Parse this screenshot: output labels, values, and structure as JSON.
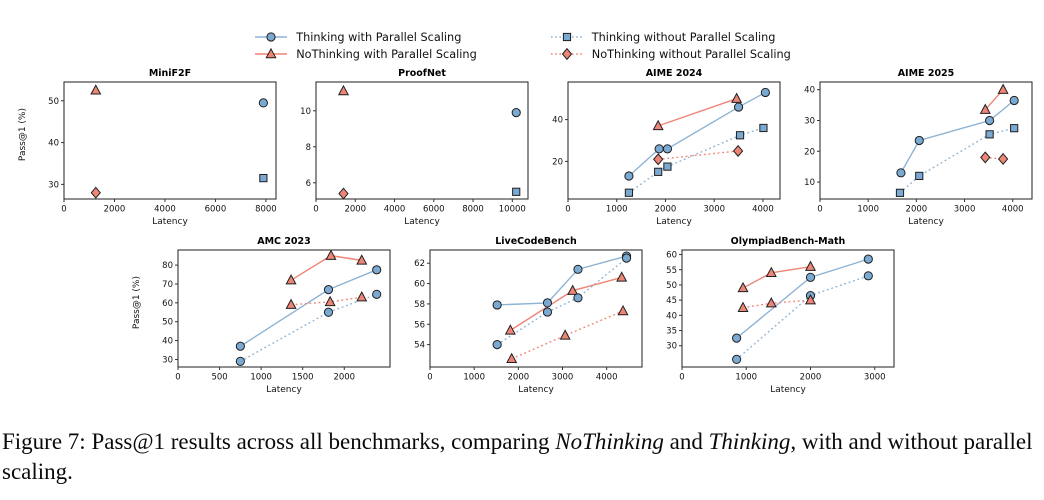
{
  "colors": {
    "blue_line": "#8db3d5",
    "blue_fill": "#7aa9d2",
    "red_line": "#f08476",
    "red_fill": "#ee8677",
    "marker_edge": "#1f1f1f",
    "axis": "#333333"
  },
  "legend": {
    "items": [
      {
        "label": "Thinking with Parallel Scaling",
        "marker": "circle",
        "line": "solid",
        "color": "blue"
      },
      {
        "label": "NoThinking with Parallel Scaling",
        "marker": "triangle",
        "line": "solid",
        "color": "red"
      },
      {
        "label": "Thinking without Parallel Scaling",
        "marker": "square",
        "line": "dotted",
        "color": "blue"
      },
      {
        "label": "NoThinking without Parallel Scaling",
        "marker": "diamond",
        "line": "dotted",
        "color": "red"
      }
    ]
  },
  "axis": {
    "ylabel": "Pass@1 (%)",
    "xlabel": "Latency"
  },
  "caption": {
    "prefix": "Figure 7: Pass@1 results across all benchmarks, comparing ",
    "italic1": "NoThinking",
    "mid": " and ",
    "italic2": "Thinking",
    "suffix": ", with and without parallel scaling."
  },
  "chart_data": [
    {
      "type": "scatter",
      "title": "MiniF2F",
      "xlabel": "Latency",
      "ylabel": "Pass@1 (%)",
      "xlim": [
        0,
        8400
      ],
      "ylim": [
        26.5,
        54.5
      ],
      "xticks": [
        0,
        2000,
        4000,
        6000,
        8000
      ],
      "yticks": [
        30,
        40,
        50
      ],
      "series": [
        {
          "name": "Thinking with Parallel Scaling",
          "color": "blue",
          "marker": "circle",
          "line": "solid",
          "points": [
            [
              7900,
              49.5
            ]
          ]
        },
        {
          "name": "NoThinking with Parallel Scaling",
          "color": "red",
          "marker": "triangle",
          "line": "solid",
          "points": [
            [
              1260,
              52.5
            ]
          ]
        },
        {
          "name": "Thinking without Parallel Scaling",
          "color": "blue",
          "marker": "square",
          "line": "dotted",
          "points": [
            [
              7900,
              31.5
            ]
          ]
        },
        {
          "name": "NoThinking without Parallel Scaling",
          "color": "red",
          "marker": "diamond",
          "line": "dotted",
          "points": [
            [
              1260,
              28
            ]
          ]
        }
      ]
    },
    {
      "type": "scatter",
      "title": "ProofNet",
      "xlabel": "Latency",
      "xlim": [
        0,
        10800
      ],
      "ylim": [
        5.1,
        11.6
      ],
      "xticks": [
        0,
        2000,
        4000,
        6000,
        8000,
        10000
      ],
      "yticks": [
        6,
        8,
        10
      ],
      "series": [
        {
          "name": "Thinking with Parallel Scaling",
          "color": "blue",
          "marker": "circle",
          "line": "solid",
          "points": [
            [
              10200,
              9.9
            ]
          ]
        },
        {
          "name": "NoThinking with Parallel Scaling",
          "color": "red",
          "marker": "triangle",
          "line": "solid",
          "points": [
            [
              1400,
              11.1
            ]
          ]
        },
        {
          "name": "Thinking without Parallel Scaling",
          "color": "blue",
          "marker": "square",
          "line": "dotted",
          "points": [
            [
              10200,
              5.5
            ]
          ]
        },
        {
          "name": "NoThinking without Parallel Scaling",
          "color": "red",
          "marker": "diamond",
          "line": "dotted",
          "points": [
            [
              1400,
              5.4
            ]
          ]
        }
      ]
    },
    {
      "type": "line",
      "title": "AIME 2024",
      "xlabel": "Latency",
      "xlim": [
        0,
        4350
      ],
      "ylim": [
        2,
        58
      ],
      "xticks": [
        0,
        1000,
        2000,
        3000,
        4000
      ],
      "yticks": [
        20,
        40
      ],
      "series": [
        {
          "name": "Thinking with Parallel Scaling",
          "color": "blue",
          "marker": "circle",
          "line": "solid",
          "points": [
            [
              1250,
              13
            ],
            [
              1870,
              26
            ],
            [
              2040,
              26
            ],
            [
              3500,
              46
            ],
            [
              4050,
              53
            ]
          ]
        },
        {
          "name": "NoThinking with Parallel Scaling",
          "color": "red",
          "marker": "triangle",
          "line": "solid",
          "points": [
            [
              1850,
              37
            ],
            [
              3460,
              50
            ]
          ]
        },
        {
          "name": "Thinking without Parallel Scaling",
          "color": "blue",
          "marker": "square",
          "line": "dotted",
          "points": [
            [
              1250,
              5
            ],
            [
              1850,
              15
            ],
            [
              2040,
              17.5
            ],
            [
              3530,
              32.5
            ],
            [
              4010,
              36
            ]
          ]
        },
        {
          "name": "NoThinking without Parallel Scaling",
          "color": "red",
          "marker": "diamond",
          "line": "dotted",
          "points": [
            [
              1850,
              21
            ],
            [
              3490,
              25
            ]
          ]
        }
      ]
    },
    {
      "type": "line",
      "title": "AIME 2025",
      "xlabel": "Latency",
      "xlim": [
        0,
        4400
      ],
      "ylim": [
        4.5,
        42.5
      ],
      "xticks": [
        0,
        1000,
        2000,
        3000,
        4000
      ],
      "yticks": [
        10,
        20,
        30,
        40
      ],
      "series": [
        {
          "name": "Thinking with Parallel Scaling",
          "color": "blue",
          "marker": "circle",
          "line": "solid",
          "points": [
            [
              1680,
              13
            ],
            [
              2060,
              23.5
            ],
            [
              3520,
              30
            ],
            [
              4030,
              36.5
            ]
          ]
        },
        {
          "name": "NoThinking with Parallel Scaling",
          "color": "red",
          "marker": "triangle",
          "line": "solid",
          "points": [
            [
              3430,
              33.5
            ],
            [
              3800,
              40
            ]
          ]
        },
        {
          "name": "Thinking without Parallel Scaling",
          "color": "blue",
          "marker": "square",
          "line": "dotted",
          "points": [
            [
              1660,
              6.5
            ],
            [
              2060,
              12
            ],
            [
              3520,
              25.5
            ],
            [
              4030,
              27.5
            ]
          ]
        },
        {
          "name": "NoThinking without Parallel Scaling",
          "color": "red",
          "marker": "diamond",
          "line": "dotted",
          "points": [
            [
              3430,
              18
            ],
            [
              3800,
              17.5
            ]
          ]
        }
      ]
    },
    {
      "type": "line",
      "title": "AMC 2023",
      "xlabel": "Latency",
      "ylabel": "Pass@1 (%)",
      "xlim": [
        0,
        2550
      ],
      "ylim": [
        26,
        88
      ],
      "xticks": [
        0,
        500,
        1000,
        1500,
        2000
      ],
      "yticks": [
        30,
        40,
        50,
        60,
        70,
        80
      ],
      "series": [
        {
          "name": "Thinking with Parallel Scaling",
          "color": "blue",
          "marker": "circle",
          "line": "solid",
          "points": [
            [
              750,
              37
            ],
            [
              1810,
              67
            ],
            [
              2390,
              77.5
            ]
          ]
        },
        {
          "name": "NoThinking with Parallel Scaling",
          "color": "red",
          "marker": "triangle",
          "line": "solid",
          "points": [
            [
              1360,
              72
            ],
            [
              1840,
              85
            ],
            [
              2210,
              82.5
            ]
          ]
        },
        {
          "name": "Thinking without Parallel Scaling",
          "color": "blue",
          "marker": "circle",
          "line": "dotted",
          "points": [
            [
              750,
              29
            ],
            [
              1810,
              55
            ],
            [
              2390,
              64.5
            ]
          ]
        },
        {
          "name": "NoThinking without Parallel Scaling",
          "color": "red",
          "marker": "triangle",
          "line": "dotted",
          "points": [
            [
              1360,
              59
            ],
            [
              1830,
              60.5
            ],
            [
              2210,
              63
            ]
          ]
        }
      ]
    },
    {
      "type": "line",
      "title": "LiveCodeBench",
      "xlabel": "Latency",
      "xlim": [
        0,
        4800
      ],
      "ylim": [
        51.8,
        63.3
      ],
      "xticks": [
        0,
        1000,
        2000,
        3000,
        4000
      ],
      "yticks": [
        54,
        56,
        58,
        60,
        62
      ],
      "series": [
        {
          "name": "Thinking with Parallel Scaling",
          "color": "blue",
          "marker": "circle",
          "line": "solid",
          "points": [
            [
              1520,
              57.9
            ],
            [
              2660,
              58.1
            ],
            [
              3350,
              61.4
            ],
            [
              4450,
              62.7
            ]
          ]
        },
        {
          "name": "NoThinking with Parallel Scaling",
          "color": "red",
          "marker": "triangle",
          "line": "solid",
          "points": [
            [
              1820,
              55.4
            ],
            [
              3230,
              59.3
            ],
            [
              4340,
              60.6
            ]
          ]
        },
        {
          "name": "Thinking without Parallel Scaling",
          "color": "blue",
          "marker": "circle",
          "line": "dotted",
          "points": [
            [
              1520,
              54
            ],
            [
              2660,
              57.2
            ],
            [
              3350,
              58.6
            ],
            [
              4450,
              62.5
            ]
          ]
        },
        {
          "name": "NoThinking without Parallel Scaling",
          "color": "red",
          "marker": "triangle",
          "line": "dotted",
          "points": [
            [
              1850,
              52.6
            ],
            [
              3060,
              54.9
            ],
            [
              4370,
              57.3
            ]
          ]
        }
      ]
    },
    {
      "type": "line",
      "title": "OlympiadBench-Math",
      "xlabel": "Latency",
      "xlim": [
        0,
        3300
      ],
      "ylim": [
        23,
        61.5
      ],
      "xticks": [
        0,
        1000,
        2000,
        3000
      ],
      "yticks": [
        30,
        35,
        40,
        45,
        50,
        55,
        60
      ],
      "series": [
        {
          "name": "Thinking with Parallel Scaling",
          "color": "blue",
          "marker": "circle",
          "line": "solid",
          "points": [
            [
              850,
              32.5
            ],
            [
              2000,
              52.5
            ],
            [
              2900,
              58.5
            ]
          ]
        },
        {
          "name": "NoThinking with Parallel Scaling",
          "color": "red",
          "marker": "triangle",
          "line": "solid",
          "points": [
            [
              950,
              49
            ],
            [
              1390,
              54
            ],
            [
              2000,
              56
            ]
          ]
        },
        {
          "name": "Thinking without Parallel Scaling",
          "color": "blue",
          "marker": "circle",
          "line": "dotted",
          "points": [
            [
              850,
              25.5
            ],
            [
              2000,
              46.5
            ],
            [
              2900,
              53
            ]
          ]
        },
        {
          "name": "NoThinking without Parallel Scaling",
          "color": "red",
          "marker": "triangle",
          "line": "dotted",
          "points": [
            [
              950,
              42.5
            ],
            [
              1390,
              44
            ],
            [
              2000,
              45
            ]
          ]
        }
      ]
    }
  ]
}
